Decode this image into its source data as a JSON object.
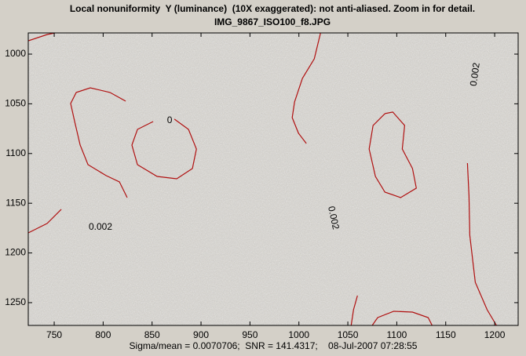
{
  "chart_data": {
    "type": "contour",
    "title": "Local nonuniformity  Y (luminance)  (10X exaggerated): not anti-aliased. Zoom in for detail.",
    "subtitle": "IMG_9867_ISO100_f8.JPG",
    "xlabel": "Sigma/mean = 0.0070706;  SNR = 141.4317;    08-Jul-2007 07:28:55",
    "xlim": [
      723.5,
      1224
    ],
    "ylim": [
      978.7,
      1272.9
    ],
    "y_reversed": true,
    "xticks": [
      750,
      800,
      850,
      900,
      950,
      1000,
      1050,
      1100,
      1150,
      1200
    ],
    "yticks": [
      1000,
      1050,
      1100,
      1150,
      1200,
      1250
    ],
    "color": "#b01010",
    "contours": [
      {
        "x": [
          723.5,
          742.8,
          750.8
        ],
        "y": [
          986.6,
          980.3,
          978.7
        ]
      },
      {
        "x": [
          823.0,
          807.0,
          786.9,
          772.5,
          766.8,
          770.9,
          776.5,
          784.5,
          803.0,
          816.6,
          824.6
        ],
        "y": [
          1047.3,
          1038.6,
          1033.9,
          1038.6,
          1049.7,
          1067.8,
          1091.5,
          1111.2,
          1122.2,
          1128.5,
          1144.3
        ]
      },
      {
        "x": [
          851.1,
          835.1,
          829.4,
          835.1,
          855.1,
          875.2,
          891.2,
          895.3,
          887.2,
          872.8
        ],
        "y": [
          1067.8,
          1075.7,
          1091.5,
          1111.2,
          1123.0,
          1125.4,
          1115.1,
          1095.4,
          1075.7,
          1065.4
        ]
      },
      {
        "x": [
          1022.1,
          1015.7,
          1003.6,
          995.6,
          993.2,
          999.6,
          1007.6
        ],
        "y": [
          978.7,
          1004.7,
          1024.4,
          1048.1,
          1063.9,
          1079.6,
          1089.9
        ]
      },
      {
        "x": [
          1087.9,
          1075.8,
          1071.8,
          1078.2,
          1087.9,
          1103.9,
          1120.0,
          1116.0,
          1105.6,
          1108.0,
          1095.9,
          1087.9
        ],
        "y": [
          1059.9,
          1071.8,
          1095.4,
          1123.0,
          1138.8,
          1144.3,
          1134.8,
          1115.1,
          1095.4,
          1071.8,
          1058.3,
          1059.9
        ]
      },
      {
        "x": [
          723.5,
          742.8,
          757.3
        ],
        "y": [
          1179.8,
          1170.3,
          1156.1
        ]
      },
      {
        "x": [
          1172.2,
          1173.8,
          1174.6,
          1180.2,
          1192.3,
          1201.9
        ],
        "y": [
          1109.6,
          1142.7,
          1182.2,
          1229.5,
          1257.1,
          1272.9
        ]
      },
      {
        "x": [
          1059.8,
          1055.8,
          1053.4
        ],
        "y": [
          1242.9,
          1257.1,
          1272.9
        ]
      },
      {
        "x": [
          1074.9,
          1080.5,
          1096.9,
          1116.0,
          1132.1,
          1136.1
        ],
        "y": [
          1272.9,
          1265.0,
          1258.7,
          1259.5,
          1265.0,
          1272.9
        ]
      }
    ],
    "contour_labels": [
      {
        "text": "0",
        "x": 868.0,
        "y": 1067.0,
        "rotation": 0
      },
      {
        "text": "0.002",
        "x": 797.3,
        "y": 1174.3,
        "rotation": 0
      },
      {
        "text": "0.002",
        "x": 1034.9,
        "y": 1164.8,
        "rotation": 78
      },
      {
        "text": "0.002",
        "x": 1180.4,
        "y": 1020.5,
        "rotation": -82
      }
    ]
  }
}
